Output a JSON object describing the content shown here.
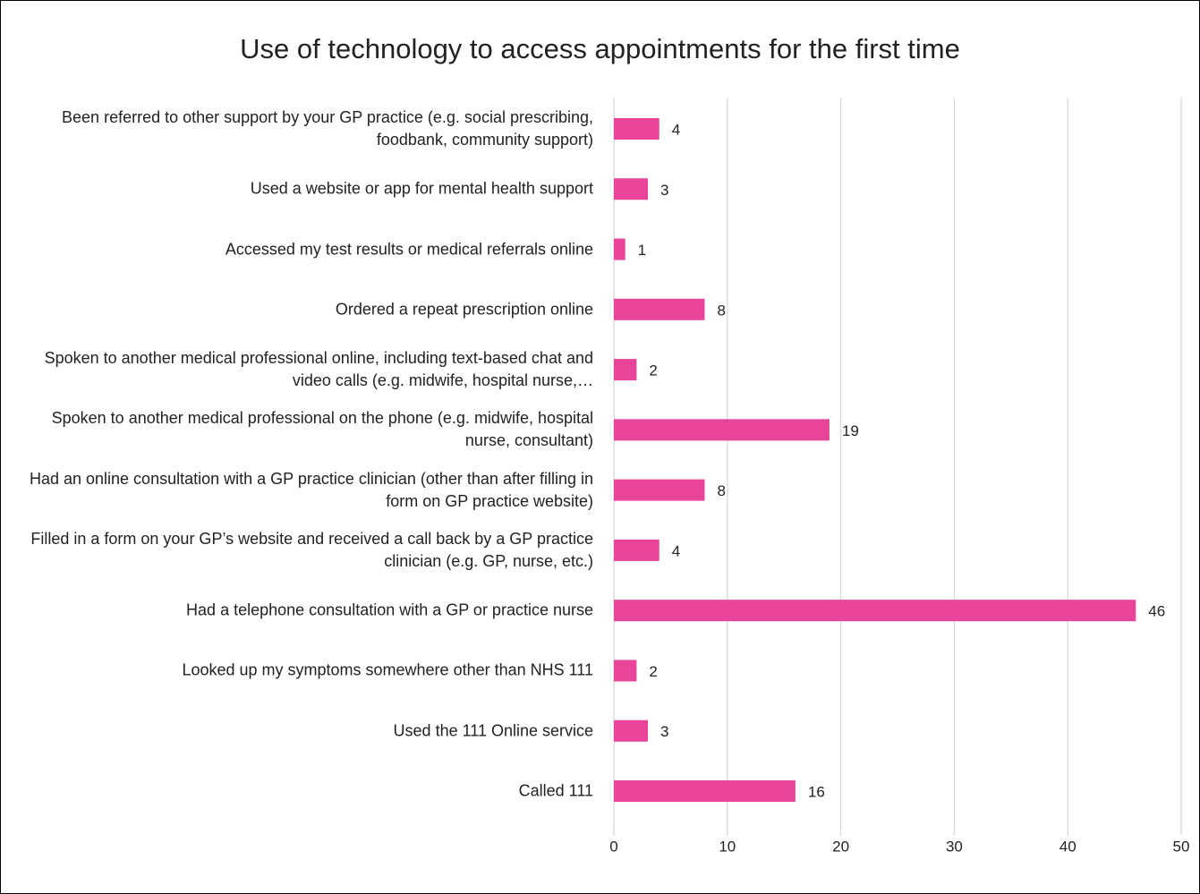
{
  "chart_data": {
    "type": "hbar",
    "title": "Use of technology to access appointments for the first time",
    "categories": [
      "Been referred to other support by your GP practice (e.g. social prescribing, foodbank, community support)",
      "Used a website or app for mental health support",
      "Accessed my test results or medical referrals online",
      "Ordered a repeat prescription online",
      "Spoken to another medical professional online, including text-based chat and video calls (e.g. midwife, hospital nurse,…",
      "Spoken to another medical professional on the phone (e.g. midwife, hospital nurse, consultant)",
      "Had an online consultation with a GP practice clinician (other than after filling in form on GP practice website)",
      "Filled in a form on your GP’s website and received a call back by a GP practice clinician (e.g. GP, nurse, etc.)",
      "Had a telephone consultation with a GP or practice nurse",
      "Looked up my symptoms somewhere other than NHS 111",
      "Used the 111 Online service",
      "Called 111"
    ],
    "values": [
      4,
      3,
      1,
      8,
      2,
      19,
      8,
      4,
      46,
      2,
      3,
      16
    ],
    "color": "#e8449a",
    "xlim": [
      0,
      50
    ],
    "xticks": [
      0,
      10,
      20,
      30,
      40,
      50
    ],
    "grid": true
  }
}
